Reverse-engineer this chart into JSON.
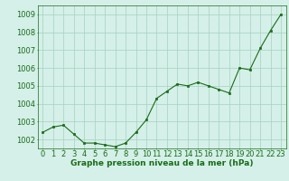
{
  "x": [
    0,
    1,
    2,
    3,
    4,
    5,
    6,
    7,
    8,
    9,
    10,
    11,
    12,
    13,
    14,
    15,
    16,
    17,
    18,
    19,
    20,
    21,
    22,
    23
  ],
  "y": [
    1002.4,
    1002.7,
    1002.8,
    1002.3,
    1001.8,
    1001.8,
    1001.7,
    1001.6,
    1001.8,
    1002.4,
    1003.1,
    1004.3,
    1004.7,
    1005.1,
    1005.0,
    1005.2,
    1005.0,
    1004.8,
    1004.6,
    1006.0,
    1005.9,
    1007.1,
    1008.1,
    1009.0
  ],
  "line_color": "#1a6b1a",
  "marker_color": "#1a6b1a",
  "bg_color": "#d4f0e8",
  "grid_color": "#a8cfc0",
  "xlabel": "Graphe pression niveau de la mer (hPa)",
  "xlabel_color": "#1a6b1a",
  "xlabel_fontsize": 6.5,
  "tick_color": "#1a6b1a",
  "tick_fontsize": 6,
  "ylim": [
    1001.5,
    1009.5
  ],
  "yticks": [
    1002,
    1003,
    1004,
    1005,
    1006,
    1007,
    1008,
    1009
  ],
  "xticks": [
    0,
    1,
    2,
    3,
    4,
    5,
    6,
    7,
    8,
    9,
    10,
    11,
    12,
    13,
    14,
    15,
    16,
    17,
    18,
    19,
    20,
    21,
    22,
    23
  ],
  "figsize": [
    3.2,
    2.0
  ],
  "dpi": 100
}
